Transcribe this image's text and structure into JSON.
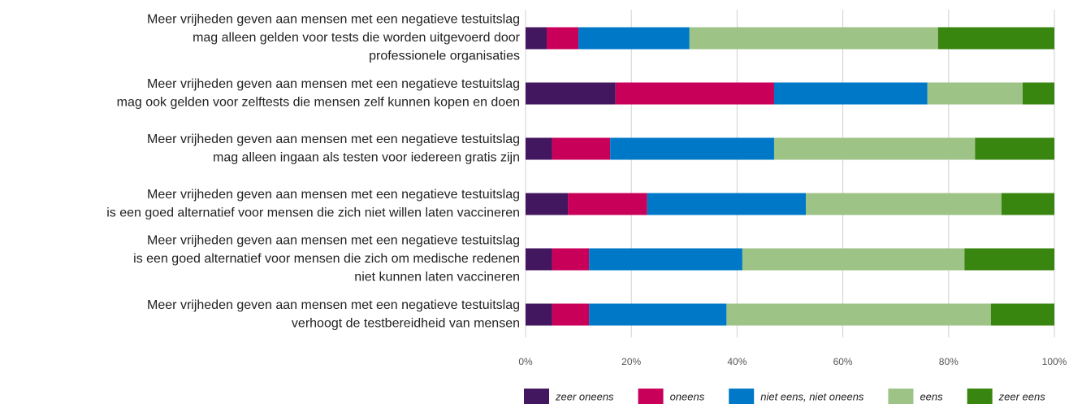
{
  "chart_data": {
    "type": "stacked-bar-horizontal",
    "categories": [
      [
        "Meer vrijheden geven aan mensen met een negatieve testuitslag",
        "mag alleen gelden voor tests die worden uitgevoerd door",
        "professionele organisaties"
      ],
      [
        "Meer vrijheden geven aan mensen met een negatieve testuitslag",
        "mag ook gelden voor zelftests die mensen zelf kunnen kopen en doen"
      ],
      [
        "Meer vrijheden geven aan mensen met een negatieve testuitslag",
        "mag alleen ingaan als testen voor iedereen gratis zijn"
      ],
      [
        "Meer vrijheden geven aan mensen met een negatieve testuitslag",
        "is een goed alternatief voor mensen die zich niet willen laten vaccineren"
      ],
      [
        "Meer vrijheden geven aan mensen met een negatieve testuitslag",
        "is een goed alternatief voor mensen die zich om medische redenen",
        "niet kunnen laten vaccineren"
      ],
      [
        "Meer vrijheden geven aan mensen met een negatieve testuitslag",
        "verhoogt de testbereidheid van mensen"
      ]
    ],
    "series": [
      {
        "name": "zeer oneens",
        "color": "#43175f",
        "values": [
          4,
          17,
          5,
          8,
          5,
          5
        ]
      },
      {
        "name": "oneens",
        "color": "#c8005a",
        "values": [
          6,
          30,
          11,
          15,
          7,
          7
        ]
      },
      {
        "name": "niet eens, niet oneens",
        "color": "#0078c8",
        "values": [
          21,
          29,
          31,
          30,
          29,
          26
        ]
      },
      {
        "name": "eens",
        "color": "#9dc386",
        "values": [
          47,
          18,
          38,
          37,
          42,
          50
        ]
      },
      {
        "name": "zeer eens",
        "color": "#38850f",
        "values": [
          22,
          6,
          15,
          10,
          17,
          12
        ]
      }
    ],
    "xlim": [
      0,
      100
    ],
    "xticks": [
      {
        "value": 0,
        "label": "0%"
      },
      {
        "value": 20,
        "label": "20%"
      },
      {
        "value": 40,
        "label": "40%"
      },
      {
        "value": 60,
        "label": "60%"
      },
      {
        "value": 80,
        "label": "80%"
      },
      {
        "value": 100,
        "label": "100%"
      }
    ],
    "grid": true,
    "legend": "bottom"
  }
}
